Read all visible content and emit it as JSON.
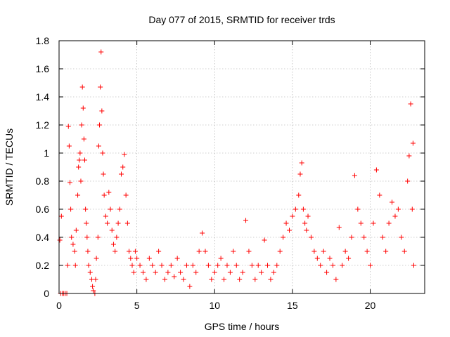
{
  "chart_data": {
    "type": "scatter",
    "title": "Day 077 of 2015, SRMTID for receiver trds",
    "xlabel": "GPS time / hours",
    "ylabel": "SRMTID / TECUs",
    "xlim": [
      0,
      23.5
    ],
    "ylim": [
      0,
      1.8
    ],
    "xticks": [
      0,
      5,
      10,
      15,
      20
    ],
    "xtick_labels": [
      "0",
      "5",
      "10",
      "15",
      "20"
    ],
    "yticks": [
      0,
      0.2,
      0.4,
      0.6,
      0.8,
      1.0,
      1.2,
      1.4,
      1.6,
      1.8
    ],
    "ytick_labels": [
      "0",
      "0.2",
      "0.4",
      "0.6",
      "0.8",
      "1",
      "1.2",
      "1.4",
      "1.6",
      "1.8"
    ],
    "grid": true,
    "marker": "+",
    "marker_color": "#ff0000",
    "series": [
      {
        "name": "SRMTID",
        "points": [
          [
            0.05,
            0.38
          ],
          [
            0.1,
            0.0
          ],
          [
            0.15,
            0.55
          ],
          [
            0.2,
            0.0
          ],
          [
            0.3,
            0.0
          ],
          [
            0.4,
            0.0
          ],
          [
            0.5,
            0.0
          ],
          [
            0.55,
            0.2
          ],
          [
            0.6,
            1.19
          ],
          [
            0.65,
            1.05
          ],
          [
            0.7,
            0.79
          ],
          [
            0.75,
            0.6
          ],
          [
            0.8,
            0.4
          ],
          [
            0.9,
            0.35
          ],
          [
            1.0,
            0.3
          ],
          [
            1.05,
            0.2
          ],
          [
            1.1,
            0.45
          ],
          [
            1.2,
            0.7
          ],
          [
            1.25,
            0.9
          ],
          [
            1.3,
            0.95
          ],
          [
            1.35,
            1.0
          ],
          [
            1.4,
            0.8
          ],
          [
            1.45,
            1.2
          ],
          [
            1.5,
            1.47
          ],
          [
            1.55,
            1.32
          ],
          [
            1.6,
            1.1
          ],
          [
            1.65,
            0.95
          ],
          [
            1.7,
            0.6
          ],
          [
            1.75,
            0.5
          ],
          [
            1.8,
            0.4
          ],
          [
            1.85,
            0.3
          ],
          [
            1.9,
            0.2
          ],
          [
            2.0,
            0.15
          ],
          [
            2.1,
            0.1
          ],
          [
            2.15,
            0.05
          ],
          [
            2.2,
            0.02
          ],
          [
            2.3,
            0.0
          ],
          [
            2.35,
            0.1
          ],
          [
            2.4,
            0.25
          ],
          [
            2.5,
            0.4
          ],
          [
            2.55,
            1.05
          ],
          [
            2.6,
            1.2
          ],
          [
            2.65,
            1.47
          ],
          [
            2.7,
            1.72
          ],
          [
            2.75,
            1.3
          ],
          [
            2.8,
            1.0
          ],
          [
            2.85,
            0.85
          ],
          [
            2.9,
            0.7
          ],
          [
            3.0,
            0.55
          ],
          [
            3.1,
            0.5
          ],
          [
            3.2,
            0.72
          ],
          [
            3.3,
            0.6
          ],
          [
            3.4,
            0.45
          ],
          [
            3.5,
            0.35
          ],
          [
            3.6,
            0.3
          ],
          [
            3.7,
            0.4
          ],
          [
            3.8,
            0.5
          ],
          [
            3.9,
            0.6
          ],
          [
            4.0,
            0.85
          ],
          [
            4.1,
            0.9
          ],
          [
            4.2,
            0.99
          ],
          [
            4.3,
            0.7
          ],
          [
            4.4,
            0.5
          ],
          [
            4.5,
            0.3
          ],
          [
            4.6,
            0.25
          ],
          [
            4.7,
            0.2
          ],
          [
            4.8,
            0.15
          ],
          [
            4.9,
            0.3
          ],
          [
            5.0,
            0.25
          ],
          [
            5.2,
            0.2
          ],
          [
            5.4,
            0.15
          ],
          [
            5.6,
            0.1
          ],
          [
            5.8,
            0.25
          ],
          [
            6.0,
            0.2
          ],
          [
            6.2,
            0.15
          ],
          [
            6.4,
            0.3
          ],
          [
            6.6,
            0.2
          ],
          [
            6.8,
            0.1
          ],
          [
            7.0,
            0.15
          ],
          [
            7.2,
            0.2
          ],
          [
            7.4,
            0.12
          ],
          [
            7.6,
            0.25
          ],
          [
            7.8,
            0.15
          ],
          [
            8.0,
            0.1
          ],
          [
            8.2,
            0.2
          ],
          [
            8.4,
            0.05
          ],
          [
            8.6,
            0.2
          ],
          [
            8.8,
            0.15
          ],
          [
            9.0,
            0.3
          ],
          [
            9.2,
            0.43
          ],
          [
            9.4,
            0.3
          ],
          [
            9.6,
            0.2
          ],
          [
            9.8,
            0.1
          ],
          [
            10.0,
            0.15
          ],
          [
            10.2,
            0.2
          ],
          [
            10.4,
            0.25
          ],
          [
            10.6,
            0.1
          ],
          [
            10.8,
            0.2
          ],
          [
            11.0,
            0.15
          ],
          [
            11.2,
            0.3
          ],
          [
            11.4,
            0.2
          ],
          [
            11.6,
            0.1
          ],
          [
            11.8,
            0.15
          ],
          [
            12.0,
            0.52
          ],
          [
            12.2,
            0.3
          ],
          [
            12.4,
            0.2
          ],
          [
            12.6,
            0.1
          ],
          [
            12.8,
            0.2
          ],
          [
            13.0,
            0.15
          ],
          [
            13.2,
            0.38
          ],
          [
            13.4,
            0.2
          ],
          [
            13.6,
            0.1
          ],
          [
            13.8,
            0.15
          ],
          [
            14.0,
            0.2
          ],
          [
            14.2,
            0.3
          ],
          [
            14.4,
            0.4
          ],
          [
            14.6,
            0.5
          ],
          [
            14.8,
            0.45
          ],
          [
            15.0,
            0.55
          ],
          [
            15.2,
            0.6
          ],
          [
            15.4,
            0.7
          ],
          [
            15.5,
            0.85
          ],
          [
            15.6,
            0.93
          ],
          [
            15.7,
            0.6
          ],
          [
            15.8,
            0.5
          ],
          [
            15.9,
            0.45
          ],
          [
            16.0,
            0.55
          ],
          [
            16.2,
            0.4
          ],
          [
            16.4,
            0.3
          ],
          [
            16.6,
            0.25
          ],
          [
            16.8,
            0.2
          ],
          [
            17.0,
            0.3
          ],
          [
            17.2,
            0.15
          ],
          [
            17.4,
            0.25
          ],
          [
            17.6,
            0.2
          ],
          [
            17.8,
            0.1
          ],
          [
            18.0,
            0.47
          ],
          [
            18.2,
            0.2
          ],
          [
            18.4,
            0.3
          ],
          [
            18.6,
            0.25
          ],
          [
            18.8,
            0.4
          ],
          [
            19.0,
            0.84
          ],
          [
            19.2,
            0.6
          ],
          [
            19.4,
            0.5
          ],
          [
            19.6,
            0.4
          ],
          [
            19.8,
            0.3
          ],
          [
            20.0,
            0.2
          ],
          [
            20.2,
            0.5
          ],
          [
            20.4,
            0.88
          ],
          [
            20.6,
            0.7
          ],
          [
            20.8,
            0.4
          ],
          [
            21.0,
            0.3
          ],
          [
            21.2,
            0.5
          ],
          [
            21.4,
            0.65
          ],
          [
            21.6,
            0.55
          ],
          [
            21.8,
            0.6
          ],
          [
            22.0,
            0.4
          ],
          [
            22.2,
            0.3
          ],
          [
            22.4,
            0.8
          ],
          [
            22.5,
            0.98
          ],
          [
            22.6,
            1.35
          ],
          [
            22.7,
            0.6
          ],
          [
            22.75,
            1.07
          ],
          [
            22.8,
            0.2
          ]
        ]
      }
    ]
  }
}
